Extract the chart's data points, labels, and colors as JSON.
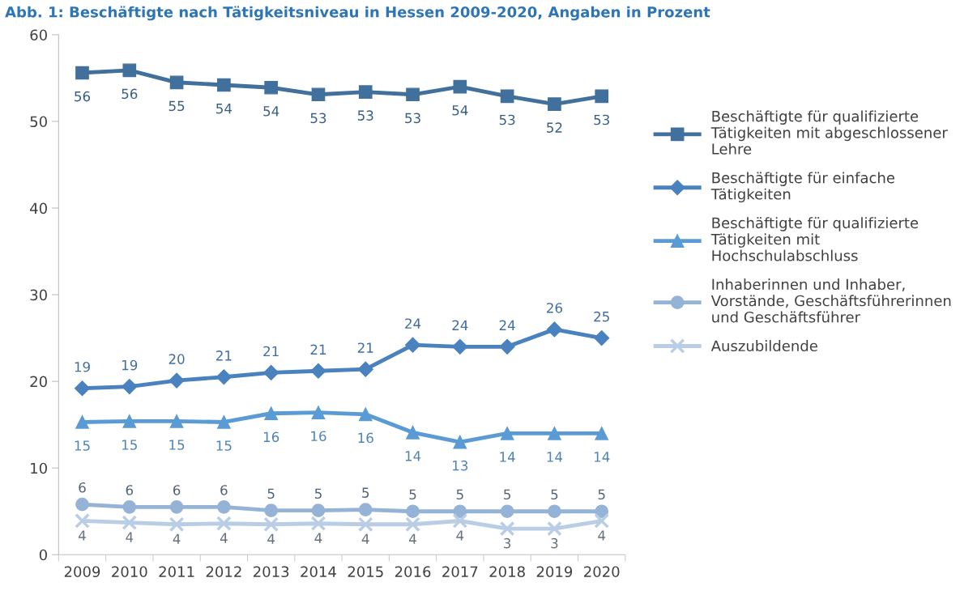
{
  "chart_data": {
    "type": "line",
    "title": "Abb. 1: Beschäftigte nach Tätigkeitsniveau in Hessen 2009-2020, Angaben in Prozent",
    "categories": [
      "2009",
      "2010",
      "2011",
      "2012",
      "2013",
      "2014",
      "2015",
      "2016",
      "2017",
      "2018",
      "2019",
      "2020"
    ],
    "ylim": [
      0,
      60
    ],
    "yticks": [
      0,
      10,
      20,
      30,
      40,
      50,
      60
    ],
    "grid": false,
    "legend": "right",
    "series": [
      {
        "name": "Beschäftigte für qualifizierte\nTätigkeiten mit abgeschlossener\nLehre",
        "color": "#41709c",
        "marker": "square",
        "values": [
          55.6,
          55.9,
          54.5,
          54.2,
          53.9,
          53.1,
          53.4,
          53.1,
          54.0,
          52.9,
          52.0,
          52.9
        ],
        "value_labels": [
          "56",
          "56",
          "55",
          "54",
          "54",
          "53",
          "53",
          "53",
          "54",
          "53",
          "52",
          "53"
        ]
      },
      {
        "name": "Beschäftigte für einfache\nTätigkeiten",
        "color": "#4a82bf",
        "marker": "diamond",
        "values": [
          19.2,
          19.4,
          20.1,
          20.5,
          21.0,
          21.2,
          21.4,
          24.2,
          24.0,
          24.0,
          26.0,
          25.0
        ],
        "value_labels": [
          "19",
          "19",
          "20",
          "21",
          "21",
          "21",
          "21",
          "24",
          "24",
          "24",
          "26",
          "25"
        ]
      },
      {
        "name": "Beschäftigte für qualifizierte\nTätigkeiten mit\nHochschulabschluss",
        "color": "#5b9bd5",
        "marker": "triangle",
        "values": [
          15.3,
          15.4,
          15.4,
          15.3,
          16.3,
          16.4,
          16.2,
          14.1,
          13.0,
          14.0,
          14.0,
          14.0
        ],
        "value_labels": [
          "15",
          "15",
          "15",
          "15",
          "16",
          "16",
          "16",
          "14",
          "13",
          "14",
          "14",
          "14"
        ]
      },
      {
        "name": "Inhaberinnen und Inhaber,\nVorstände, Geschäftsführerinnen\nund Geschäftsführer",
        "color": "#95b3d7",
        "marker": "circle",
        "values": [
          5.8,
          5.5,
          5.5,
          5.5,
          5.1,
          5.1,
          5.2,
          5.0,
          5.0,
          5.0,
          5.0,
          5.0
        ],
        "value_labels": [
          "6",
          "6",
          "6",
          "6",
          "5",
          "5",
          "5",
          "5",
          "5",
          "5",
          "5",
          "5"
        ]
      },
      {
        "name": "Auszubildende",
        "color": "#b9cde5",
        "marker": "cross",
        "values": [
          3.9,
          3.7,
          3.5,
          3.6,
          3.5,
          3.6,
          3.5,
          3.5,
          3.9,
          3.0,
          3.0,
          3.9
        ],
        "value_labels": [
          "4",
          "4",
          "4",
          "4",
          "4",
          "4",
          "4",
          "4",
          "4",
          "3",
          "3",
          "4"
        ]
      }
    ]
  }
}
